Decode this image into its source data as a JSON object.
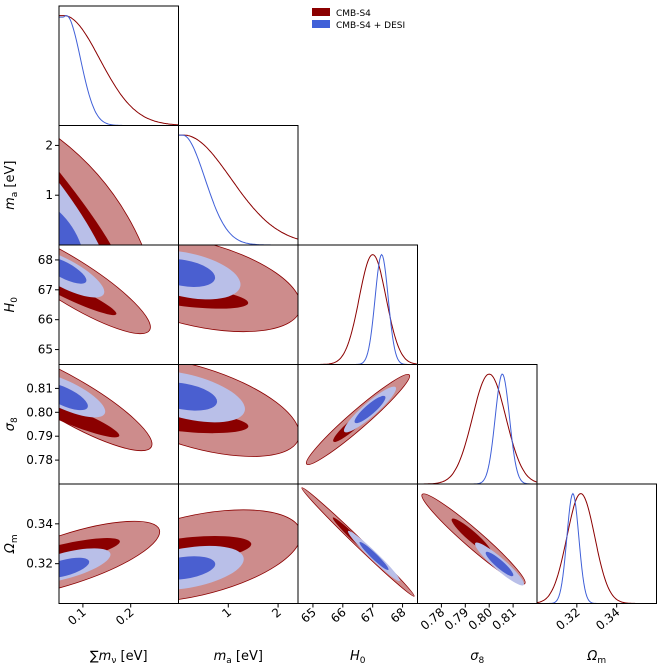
{
  "chart_data": {
    "type": "triangle-corner",
    "parameters": [
      {
        "id": "mnu",
        "label": "∑m_ν [eV]",
        "range": [
          0.05,
          0.3
        ],
        "ticks": [
          0.1,
          0.2
        ],
        "tick_labels": [
          "0.1",
          "0.2"
        ]
      },
      {
        "id": "ma",
        "label": "m_a [eV]",
        "range": [
          0.0,
          2.4
        ],
        "ticks": [
          1,
          2
        ],
        "tick_labels": [
          "1",
          "2"
        ]
      },
      {
        "id": "H0",
        "label": "H_0",
        "range": [
          64.5,
          68.5
        ],
        "ticks": [
          65,
          66,
          67,
          68
        ],
        "tick_labels": [
          "65",
          "66",
          "67",
          "68"
        ]
      },
      {
        "id": "s8",
        "label": "σ_8",
        "range": [
          0.77,
          0.82
        ],
        "ticks": [
          0.78,
          0.79,
          0.8,
          0.81
        ],
        "tick_labels": [
          "0.78",
          "0.79",
          "0.80",
          "0.81"
        ]
      },
      {
        "id": "Om",
        "label": "Ω_m",
        "range": [
          0.3,
          0.36
        ],
        "ticks": [
          0.32,
          0.34
        ],
        "tick_labels": [
          "0.32",
          "0.34"
        ]
      }
    ],
    "legend": {
      "placement": "top-right",
      "entries": [
        {
          "name": "CMB-S4",
          "color": "#8b0000"
        },
        {
          "name": "CMB-S4 + DESI",
          "color": "#4060d8"
        }
      ]
    },
    "colors": {
      "cmb_dark": "#8b0000",
      "cmb_light": "#cd8c8c",
      "desi_dark": "#4a5fd0",
      "desi_light": "#b9bfe8",
      "cmb_line": "#8b0000",
      "desi_line": "#4060d8"
    },
    "series": [
      {
        "name": "CMB-S4",
        "marginals": {
          "mnu": {
            "mean": 0.06,
            "sigma": 0.075,
            "truncate_low": 0.06
          },
          "ma": {
            "mean": 0.1,
            "sigma": 0.95,
            "truncate_low": 0.1
          },
          "H0": {
            "mean": 67.0,
            "sigma": 0.45
          },
          "s8": {
            "mean": 0.8,
            "sigma": 0.007
          },
          "Om": {
            "mean": 0.322,
            "sigma": 0.007
          }
        },
        "joint": [
          {
            "pair": [
              "mnu",
              "ma"
            ],
            "dark_corner": [
              0.06,
              0.0
            ],
            "dark_extent": [
              0.11,
              1.35
            ],
            "light_extent": [
              0.2,
              2.4
            ]
          },
          {
            "pair": [
              "mnu",
              "H0"
            ],
            "slope": -12.0,
            "center": [
              0.09,
              66.8
            ],
            "widths": [
              0.25,
              0.6
            ]
          },
          {
            "pair": [
              "mnu",
              "s8"
            ],
            "slope": -0.08,
            "center": [
              0.09,
              0.799
            ],
            "widths": [
              0.004,
              0.008
            ]
          },
          {
            "pair": [
              "mnu",
              "Om"
            ],
            "slope": 0.065,
            "center": [
              0.09,
              0.323
            ],
            "widths": [
              0.004,
              0.008
            ]
          },
          {
            "pair": [
              "ma",
              "H0"
            ],
            "slope": -0.3,
            "center": [
              0.5,
              66.7
            ],
            "widths": [
              0.25,
              0.6
            ]
          },
          {
            "pair": [
              "ma",
              "s8"
            ],
            "slope": -0.004,
            "center": [
              0.5,
              0.798
            ],
            "widths": [
              0.004,
              0.008
            ]
          },
          {
            "pair": [
              "ma",
              "Om"
            ],
            "slope": 0.003,
            "center": [
              0.5,
              0.323
            ],
            "widths": [
              0.004,
              0.008
            ]
          },
          {
            "pair": [
              "H0",
              "s8"
            ],
            "center": [
              67.0,
              0.8
            ],
            "corr": 0.98
          },
          {
            "pair": [
              "H0",
              "Om"
            ],
            "center": [
              67.0,
              0.322
            ],
            "corr": -0.98
          },
          {
            "pair": [
              "s8",
              "Om"
            ],
            "center": [
              0.8,
              0.322
            ],
            "corr": -0.98
          }
        ]
      },
      {
        "name": "CMB-S4 + DESI",
        "marginals": {
          "mnu": {
            "mean": 0.065,
            "sigma": 0.03,
            "truncate_low": 0.06
          },
          "ma": {
            "mean": 0.08,
            "sigma": 0.45,
            "truncate_low": 0.08
          },
          "H0": {
            "mean": 67.3,
            "sigma": 0.22
          },
          "s8": {
            "mean": 0.8055,
            "sigma": 0.003
          },
          "Om": {
            "mean": 0.318,
            "sigma": 0.003
          }
        }
      }
    ]
  }
}
